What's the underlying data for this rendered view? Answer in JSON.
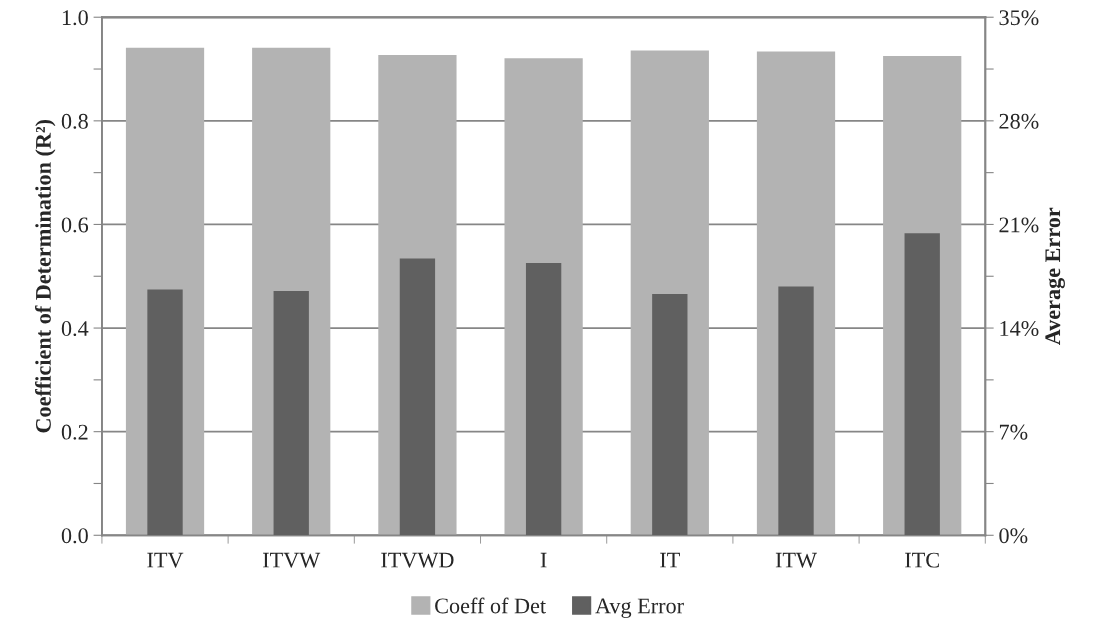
{
  "chart_data": {
    "type": "bar",
    "categories": [
      "ITV",
      "ITVW",
      "ITVWD",
      "I",
      "IT",
      "ITW",
      "ITC"
    ],
    "series": [
      {
        "name": "Coeff of Det",
        "color": "#b3b3b3",
        "values": [
          0.941,
          0.941,
          0.927,
          0.921,
          0.936,
          0.934,
          0.925
        ]
      },
      {
        "name": "Avg Error",
        "color": "#606060",
        "axis": "y2",
        "values": [
          16.6,
          16.5,
          18.7,
          18.4,
          16.3,
          16.8,
          20.4
        ]
      }
    ],
    "ylabel": "Coefficient of Determination (R²)",
    "y2label": "Average Error",
    "ylim": [
      0,
      1.0
    ],
    "yticks": [
      {
        "value": 0,
        "label": "0.0"
      },
      {
        "value": 0.1,
        "label": null
      },
      {
        "value": 0.2,
        "label": "0.2"
      },
      {
        "value": 0.3,
        "label": null
      },
      {
        "value": 0.4,
        "label": "0.4"
      },
      {
        "value": 0.5,
        "label": null
      },
      {
        "value": 0.6,
        "label": "0.6"
      },
      {
        "value": 0.7,
        "label": null
      },
      {
        "value": 0.8,
        "label": "0.8"
      },
      {
        "value": 0.9,
        "label": null
      },
      {
        "value": 1.0,
        "label": "1.0"
      }
    ],
    "y2lim": [
      0,
      35
    ],
    "y2ticks": [
      {
        "value": 0,
        "label": "0%"
      },
      {
        "value": 3.5,
        "label": null
      },
      {
        "value": 7,
        "label": "7%"
      },
      {
        "value": 10.5,
        "label": null
      },
      {
        "value": 14,
        "label": "14%"
      },
      {
        "value": 17.5,
        "label": null
      },
      {
        "value": 21,
        "label": "21%"
      },
      {
        "value": 24.5,
        "label": null
      },
      {
        "value": 28,
        "label": "28%"
      },
      {
        "value": 31.5,
        "label": null
      },
      {
        "value": 35,
        "label": "35%"
      }
    ],
    "grid": "y",
    "legend": "bottom"
  }
}
